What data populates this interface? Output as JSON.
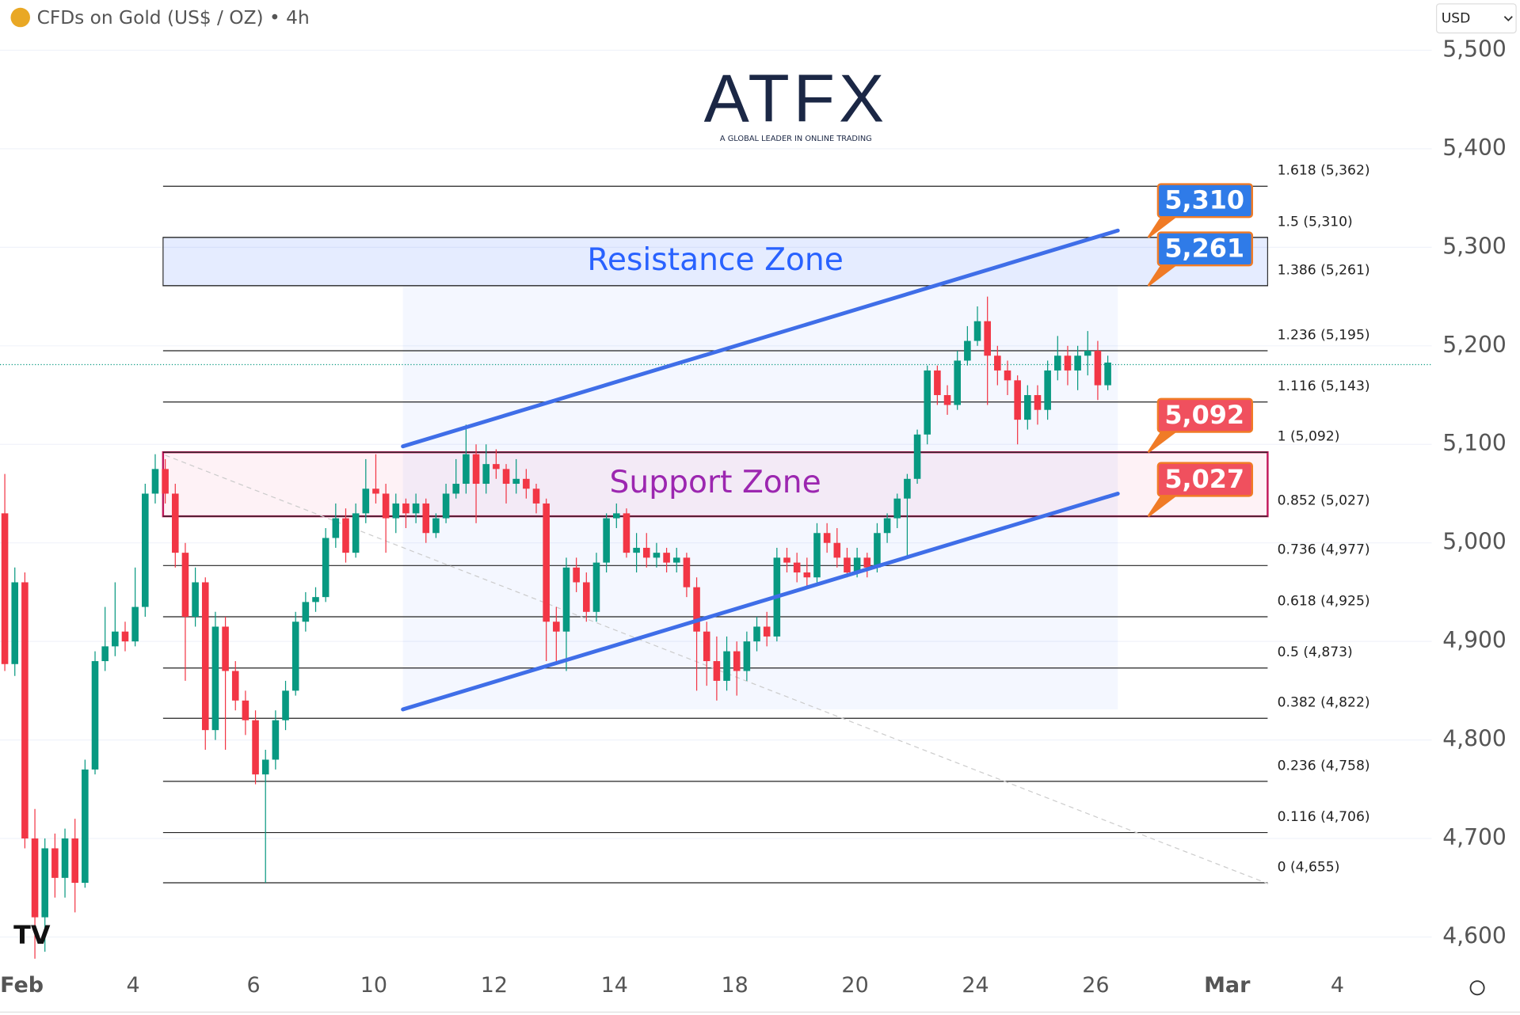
{
  "chart_data": {
    "type": "candlestick",
    "title": "CFDs on Gold (US$ / OZ) • 4h",
    "currency": "USD",
    "logo": {
      "name": "ATFX",
      "tagline": "A GLOBAL LEADER IN ONLINE TRADING"
    },
    "up_color": "#089981",
    "down_color": "#f23645",
    "candles": [
      [
        5030,
        5070,
        4870,
        4877
      ],
      [
        4877,
        4975,
        4865,
        4960
      ],
      [
        4960,
        4970,
        4690,
        4700
      ],
      [
        4700,
        4730,
        4578,
        4620
      ],
      [
        4620,
        4700,
        4585,
        4690
      ],
      [
        4690,
        4705,
        4640,
        4660
      ],
      [
        4660,
        4710,
        4640,
        4700
      ],
      [
        4700,
        4720,
        4625,
        4655
      ],
      [
        4655,
        4780,
        4650,
        4770
      ],
      [
        4770,
        4890,
        4765,
        4880
      ],
      [
        4880,
        4935,
        4870,
        4895
      ],
      [
        4895,
        4960,
        4885,
        4910
      ],
      [
        4910,
        4920,
        4890,
        4900
      ],
      [
        4900,
        4975,
        4895,
        4935
      ],
      [
        4935,
        5060,
        4925,
        5050
      ],
      [
        5050,
        5090,
        5040,
        5075
      ],
      [
        5075,
        5085,
        5040,
        5050
      ],
      [
        5050,
        5060,
        4975,
        4990
      ],
      [
        4990,
        5000,
        4860,
        4925
      ],
      [
        4925,
        4975,
        4915,
        4960
      ],
      [
        4960,
        4965,
        4790,
        4810
      ],
      [
        4810,
        4930,
        4800,
        4915
      ],
      [
        4915,
        4925,
        4790,
        4870
      ],
      [
        4870,
        4880,
        4830,
        4840
      ],
      [
        4840,
        4850,
        4805,
        4820
      ],
      [
        4820,
        4830,
        4755,
        4765
      ],
      [
        4765,
        4790,
        4655,
        4780
      ],
      [
        4780,
        4830,
        4770,
        4820
      ],
      [
        4820,
        4860,
        4810,
        4850
      ],
      [
        4850,
        4930,
        4845,
        4920
      ],
      [
        4920,
        4950,
        4910,
        4940
      ],
      [
        4940,
        4955,
        4930,
        4945
      ],
      [
        4945,
        5015,
        4940,
        5005
      ],
      [
        5005,
        5040,
        4995,
        5025
      ],
      [
        5025,
        5035,
        4980,
        4990
      ],
      [
        4990,
        5040,
        4985,
        5030
      ],
      [
        5030,
        5085,
        5020,
        5055
      ],
      [
        5055,
        5090,
        5040,
        5050
      ],
      [
        5050,
        5060,
        4990,
        5025
      ],
      [
        5025,
        5050,
        5010,
        5040
      ],
      [
        5040,
        5045,
        5015,
        5030
      ],
      [
        5030,
        5050,
        5020,
        5040
      ],
      [
        5040,
        5045,
        5000,
        5010
      ],
      [
        5010,
        5030,
        5005,
        5025
      ],
      [
        5025,
        5060,
        5020,
        5050
      ],
      [
        5050,
        5085,
        5045,
        5060
      ],
      [
        5060,
        5120,
        5050,
        5090
      ],
      [
        5090,
        5100,
        5020,
        5060
      ],
      [
        5060,
        5100,
        5050,
        5080
      ],
      [
        5080,
        5095,
        5065,
        5075
      ],
      [
        5075,
        5080,
        5040,
        5060
      ],
      [
        5060,
        5085,
        5050,
        5065
      ],
      [
        5065,
        5075,
        5045,
        5055
      ],
      [
        5055,
        5060,
        5030,
        5040
      ],
      [
        5040,
        5045,
        4880,
        4920
      ],
      [
        4920,
        4935,
        4880,
        4910
      ],
      [
        4910,
        4985,
        4870,
        4975
      ],
      [
        4975,
        4985,
        4950,
        4960
      ],
      [
        4960,
        4970,
        4920,
        4930
      ],
      [
        4930,
        4990,
        4920,
        4980
      ],
      [
        4980,
        5030,
        4970,
        5025
      ],
      [
        5025,
        5040,
        5015,
        5030
      ],
      [
        5030,
        5035,
        4985,
        4990
      ],
      [
        4990,
        5010,
        4970,
        4995
      ],
      [
        4995,
        5010,
        4975,
        4985
      ],
      [
        4985,
        5000,
        4975,
        4990
      ],
      [
        4990,
        4995,
        4970,
        4980
      ],
      [
        4980,
        4995,
        4970,
        4985
      ],
      [
        4985,
        4990,
        4945,
        4955
      ],
      [
        4955,
        4965,
        4850,
        4910
      ],
      [
        4910,
        4920,
        4855,
        4880
      ],
      [
        4880,
        4905,
        4840,
        4860
      ],
      [
        4860,
        4905,
        4850,
        4890
      ],
      [
        4890,
        4900,
        4845,
        4870
      ],
      [
        4870,
        4910,
        4860,
        4900
      ],
      [
        4900,
        4925,
        4890,
        4915
      ],
      [
        4915,
        4930,
        4895,
        4905
      ],
      [
        4905,
        4995,
        4900,
        4985
      ],
      [
        4985,
        4995,
        4970,
        4980
      ],
      [
        4980,
        4990,
        4960,
        4970
      ],
      [
        4970,
        4985,
        4955,
        4965
      ],
      [
        4965,
        5020,
        4960,
        5010
      ],
      [
        5010,
        5020,
        4990,
        5000
      ],
      [
        5000,
        5015,
        4975,
        4985
      ],
      [
        4985,
        4995,
        4965,
        4970
      ],
      [
        4970,
        4995,
        4965,
        4985
      ],
      [
        4985,
        4990,
        4965,
        4975
      ],
      [
        4975,
        5020,
        4970,
        5010
      ],
      [
        5010,
        5030,
        5000,
        5025
      ],
      [
        5025,
        5050,
        5015,
        5045
      ],
      [
        5045,
        5070,
        4985,
        5065
      ],
      [
        5065,
        5115,
        5060,
        5110
      ],
      [
        5110,
        5180,
        5100,
        5175
      ],
      [
        5175,
        5180,
        5140,
        5150
      ],
      [
        5150,
        5160,
        5130,
        5140
      ],
      [
        5140,
        5195,
        5135,
        5185
      ],
      [
        5185,
        5220,
        5180,
        5205
      ],
      [
        5205,
        5240,
        5200,
        5225
      ],
      [
        5225,
        5250,
        5140,
        5190
      ],
      [
        5190,
        5200,
        5160,
        5175
      ],
      [
        5175,
        5185,
        5150,
        5165
      ],
      [
        5165,
        5170,
        5100,
        5125
      ],
      [
        5125,
        5160,
        5115,
        5150
      ],
      [
        5150,
        5160,
        5120,
        5135
      ],
      [
        5135,
        5185,
        5125,
        5175
      ],
      [
        5175,
        5210,
        5165,
        5190
      ],
      [
        5190,
        5200,
        5160,
        5175
      ],
      [
        5175,
        5200,
        5155,
        5190
      ],
      [
        5190,
        5215,
        5170,
        5195
      ],
      [
        5195,
        5205,
        5145,
        5160
      ],
      [
        5160,
        5190,
        5155,
        5183
      ]
    ],
    "xlim": [
      -0.48,
      142.3
    ],
    "xticks": [
      {
        "value": 1.7,
        "label": "Feb"
      },
      {
        "value": 12.8,
        "label": "4"
      },
      {
        "value": 24.8,
        "label": "6"
      },
      {
        "value": 36.8,
        "label": "10"
      },
      {
        "value": 48.8,
        "label": "12"
      },
      {
        "value": 60.8,
        "label": "14"
      },
      {
        "value": 72.8,
        "label": "18"
      },
      {
        "value": 84.8,
        "label": "20"
      },
      {
        "value": 96.8,
        "label": "24"
      },
      {
        "value": 108.8,
        "label": "26"
      },
      {
        "value": 121.9,
        "label": "Mar"
      },
      {
        "value": 132.9,
        "label": "4"
      }
    ],
    "ylim": [
      4572,
      5551
    ],
    "yticks": [
      {
        "value": 5500,
        "label": "5,500"
      },
      {
        "value": 5400,
        "label": "5,400"
      },
      {
        "value": 5300,
        "label": "5,300"
      },
      {
        "value": 5200,
        "label": "5,200"
      },
      {
        "value": 5100,
        "label": "5,100"
      },
      {
        "value": 5000,
        "label": "5,000"
      },
      {
        "value": 4900,
        "label": "4,900"
      },
      {
        "value": 4800,
        "label": "4,800"
      },
      {
        "value": 4700,
        "label": "4,700"
      },
      {
        "value": 4600,
        "label": "4,600"
      }
    ],
    "grid": true,
    "fib_levels": [
      {
        "value": 5362,
        "label": "1.618 (5,362)"
      },
      {
        "value": 5310,
        "label": "1.5 (5,310)"
      },
      {
        "value": 5261,
        "label": "1.386 (5,261)"
      },
      {
        "value": 5195,
        "label": "1.236 (5,195)"
      },
      {
        "value": 5143,
        "label": "1.116 (5,143)"
      },
      {
        "value": 5092,
        "label": "1 (5,092)"
      },
      {
        "value": 5027,
        "label": "0.852 (5,027)"
      },
      {
        "value": 4977,
        "label": "0.736 (4,977)"
      },
      {
        "value": 4925,
        "label": "0.618 (4,925)"
      },
      {
        "value": 4873,
        "label": "0.5 (4,873)"
      },
      {
        "value": 4822,
        "label": "0.382 (4,822)"
      },
      {
        "value": 4758,
        "label": "0.236 (4,758)"
      },
      {
        "value": 4706,
        "label": "0.116 (4,706)"
      },
      {
        "value": 4655,
        "label": "0 (4,655)"
      }
    ],
    "zones": [
      {
        "name": "Resistance Zone",
        "low": 5261,
        "high": 5310,
        "color": "#2962ff"
      },
      {
        "name": "Support Zone",
        "low": 5027,
        "high": 5092,
        "color": "#9c27b0"
      }
    ],
    "callouts": [
      {
        "value": 5310,
        "label": "5,310",
        "color": "#2f7be8"
      },
      {
        "value": 5261,
        "label": "5,261",
        "color": "#2f7be8"
      },
      {
        "value": 5092,
        "label": "5,092",
        "color": "#f0505e"
      },
      {
        "value": 5027,
        "label": "5,027",
        "color": "#f0505e"
      }
    ],
    "channel": {
      "upper": [
        [
          39.7,
          5098
        ],
        [
          111,
          5317
        ]
      ],
      "lower": [
        [
          39.7,
          4831
        ],
        [
          111,
          5050
        ]
      ],
      "color": "#3f6ee8"
    },
    "trendline": [
      [
        16,
        5089
      ],
      [
        126,
        4654
      ]
    ],
    "current_price": 5181
  }
}
